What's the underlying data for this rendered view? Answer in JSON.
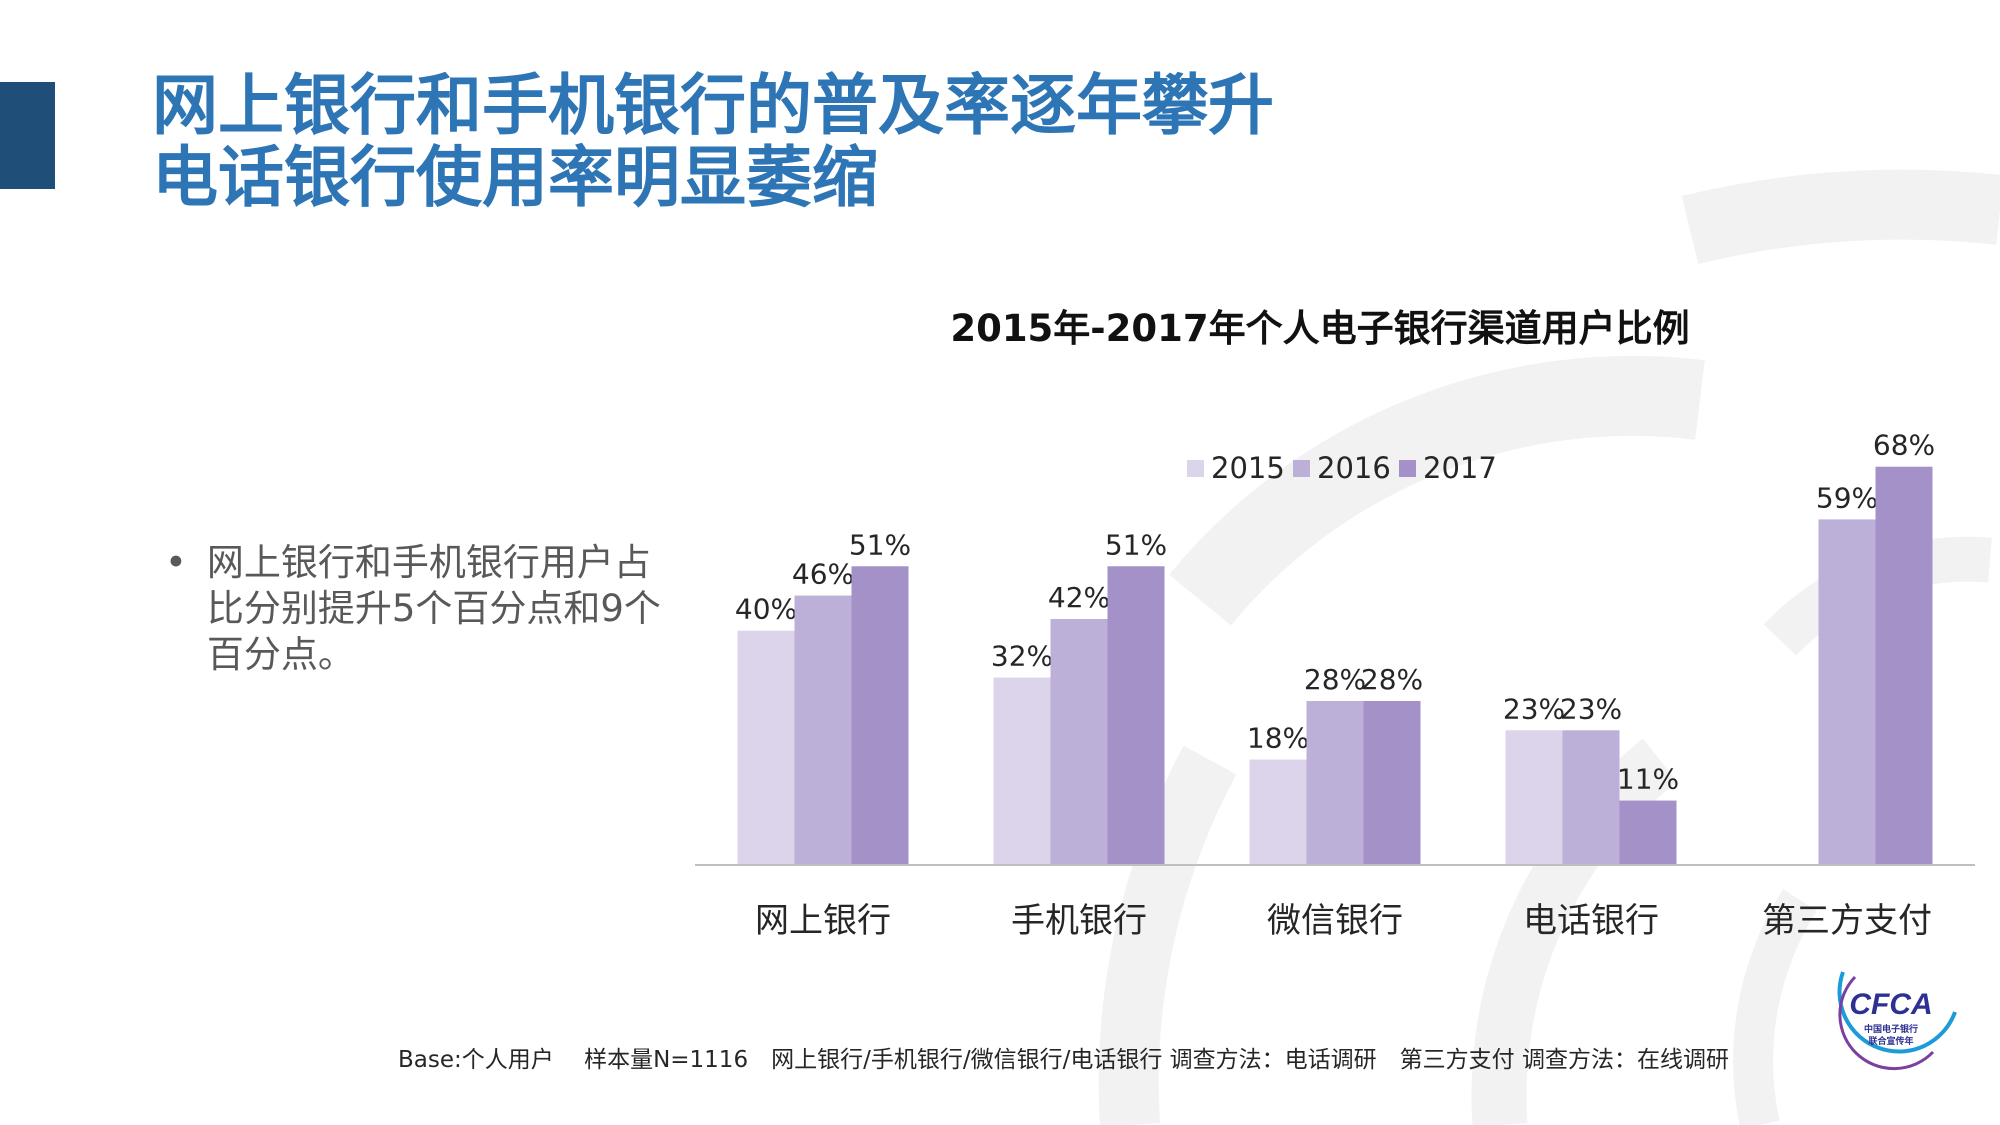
{
  "headline": {
    "line1": "网上银行和手机银行的普及率逐年攀升",
    "line2": "电话银行使用率明显萎缩"
  },
  "bullet": {
    "symbol": "•",
    "text": "网上银行和手机银行用户占比分别提升5个百分点和9个百分点。"
  },
  "footnote": "Base:个人用户　 样本量N=1116　网上银行/手机银行/微信银行/电话银行 调查方法：电话调研　第三方支付 调查方法：在线调研",
  "logo": {
    "text": "CFCA",
    "subtext_line1": "中国电子银行",
    "subtext_line2": "联合宣传年",
    "colors": {
      "text": "#2e3192",
      "ring_primary": "#1d9bd7",
      "ring_secondary": "#7b3fa0"
    }
  },
  "chart_data": {
    "type": "bar",
    "title": "2015年-2017年个人电子银行渠道用户比例",
    "categories": [
      "网上银行",
      "手机银行",
      "微信银行",
      "电话银行",
      "第三方支付"
    ],
    "series": [
      {
        "name": "2015",
        "color": "#dcd4ea",
        "values": [
          40,
          32,
          18,
          23,
          null
        ],
        "labels": [
          "40%",
          "32%",
          "18%",
          "23%",
          ""
        ]
      },
      {
        "name": "2016",
        "color": "#bcb0d8",
        "values": [
          46,
          42,
          28,
          23,
          59
        ],
        "labels": [
          "46%",
          "42%",
          "28%",
          "23%",
          "59%"
        ]
      },
      {
        "name": "2017",
        "color": "#a391c8",
        "values": [
          51,
          51,
          28,
          11,
          68
        ],
        "labels": [
          "51%",
          "51%",
          "28%",
          "11%",
          "68%"
        ]
      }
    ],
    "ylim": [
      0,
      70
    ],
    "grid": false,
    "legend_position": "top",
    "axis_color": "#bfbfbf"
  }
}
